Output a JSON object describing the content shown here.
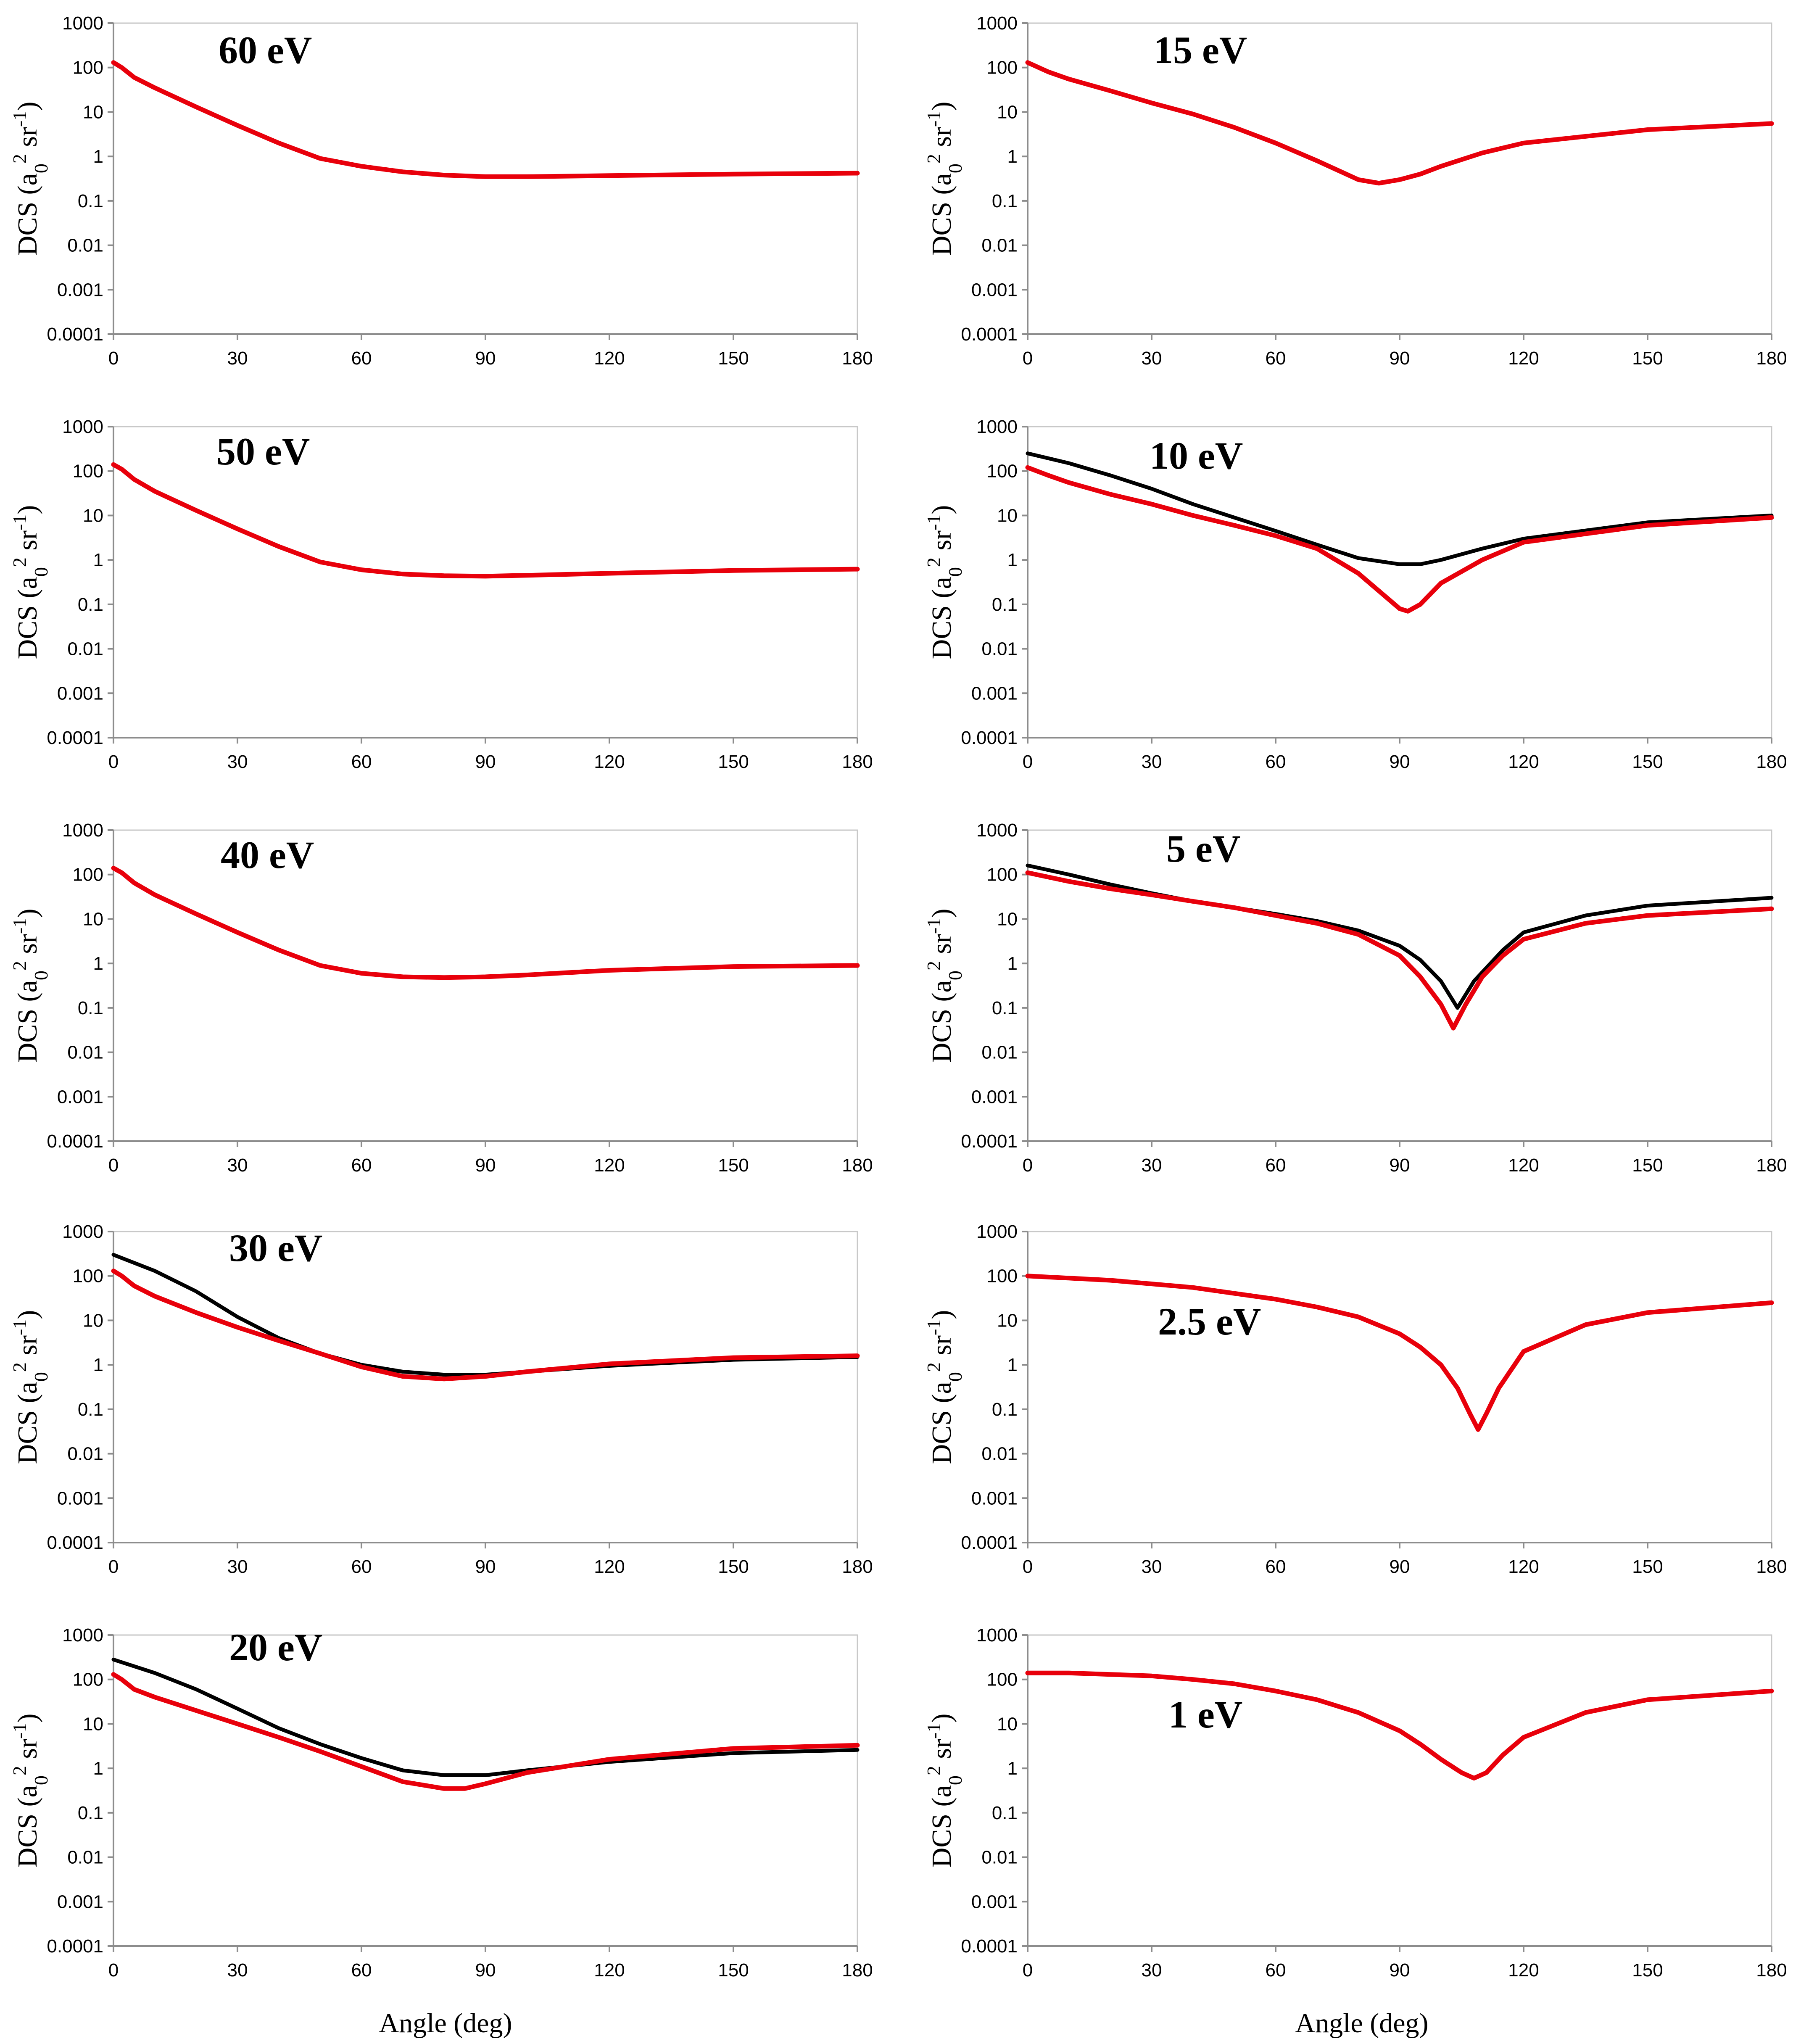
{
  "figure": {
    "x_axis_label": "Angle (deg)"
  },
  "chart_data": [
    {
      "panel": "60 eV",
      "type": "line",
      "xlim": [
        0,
        180
      ],
      "ylim": [
        0.0001,
        1000
      ],
      "yscale": "log",
      "xticks": [
        "0",
        "30",
        "60",
        "90",
        "120",
        "150",
        "180"
      ],
      "yticks": [
        "0.0001",
        "0.001",
        "0.01",
        "0.1",
        "1",
        "10",
        "100",
        "1000"
      ],
      "ylabel_main": "DCS (a",
      "ylabel_sub": "0",
      "ylabel_sup": "2",
      "ylabel_tail": " sr",
      "ylabel_sup2": "-1",
      "ylabel_close": ")",
      "series": [
        {
          "name": "red",
          "color": "#e8000b",
          "x": [
            0,
            2,
            5,
            10,
            20,
            30,
            40,
            50,
            60,
            70,
            80,
            90,
            100,
            120,
            150,
            180
          ],
          "y": [
            130,
            100,
            60,
            35,
            13,
            5,
            2,
            0.9,
            0.6,
            0.45,
            0.38,
            0.35,
            0.35,
            0.37,
            0.4,
            0.42
          ]
        }
      ]
    },
    {
      "panel": "15 eV",
      "type": "line",
      "xlim": [
        0,
        180
      ],
      "ylim": [
        0.0001,
        1000
      ],
      "yscale": "log",
      "xticks": [
        "0",
        "30",
        "60",
        "90",
        "120",
        "150",
        "180"
      ],
      "yticks": [
        "0.0001",
        "0.001",
        "0.01",
        "0.1",
        "1",
        "10",
        "100",
        "1000"
      ],
      "ylabel_main": "DCS (a",
      "ylabel_sub": "0",
      "ylabel_sup": "2",
      "ylabel_tail": " sr",
      "ylabel_sup2": "-1",
      "ylabel_close": ")",
      "series": [
        {
          "name": "red",
          "color": "#e8000b",
          "x": [
            0,
            5,
            10,
            20,
            30,
            40,
            50,
            60,
            70,
            80,
            85,
            90,
            95,
            100,
            110,
            120,
            150,
            180
          ],
          "y": [
            130,
            80,
            55,
            30,
            16,
            9,
            4.5,
            2,
            0.8,
            0.3,
            0.25,
            0.3,
            0.4,
            0.6,
            1.2,
            2,
            4,
            5.5
          ]
        }
      ]
    },
    {
      "panel": "50 eV",
      "type": "line",
      "xlim": [
        0,
        180
      ],
      "ylim": [
        0.0001,
        1000
      ],
      "yscale": "log",
      "xticks": [
        "0",
        "30",
        "60",
        "90",
        "120",
        "150",
        "180"
      ],
      "yticks": [
        "0.0001",
        "0.001",
        "0.01",
        "0.1",
        "1",
        "10",
        "100",
        "1000"
      ],
      "ylabel_main": "DCS (a",
      "ylabel_sub": "0",
      "ylabel_sup": "2",
      "ylabel_tail": " sr",
      "ylabel_sup2": "-1",
      "ylabel_close": ")",
      "series": [
        {
          "name": "red",
          "color": "#e8000b",
          "x": [
            0,
            2,
            5,
            10,
            20,
            30,
            40,
            50,
            60,
            70,
            80,
            90,
            100,
            120,
            150,
            180
          ],
          "y": [
            140,
            110,
            65,
            35,
            13,
            5,
            2,
            0.9,
            0.6,
            0.48,
            0.44,
            0.43,
            0.45,
            0.5,
            0.58,
            0.62
          ]
        }
      ]
    },
    {
      "panel": "10 eV",
      "type": "line",
      "xlim": [
        0,
        180
      ],
      "ylim": [
        0.0001,
        1000
      ],
      "yscale": "log",
      "xticks": [
        "0",
        "30",
        "60",
        "90",
        "120",
        "150",
        "180"
      ],
      "yticks": [
        "0.0001",
        "0.001",
        "0.01",
        "0.1",
        "1",
        "10",
        "100",
        "1000"
      ],
      "ylabel_main": "DCS (a",
      "ylabel_sub": "0",
      "ylabel_sup": "2",
      "ylabel_tail": " sr",
      "ylabel_sup2": "-1",
      "ylabel_close": ")",
      "series": [
        {
          "name": "black",
          "color": "#000000",
          "x": [
            0,
            10,
            20,
            30,
            40,
            50,
            60,
            70,
            80,
            90,
            95,
            100,
            110,
            120,
            150,
            180
          ],
          "y": [
            250,
            150,
            80,
            40,
            18,
            9,
            4.5,
            2.2,
            1.1,
            0.8,
            0.8,
            1,
            1.8,
            3,
            7,
            10
          ]
        },
        {
          "name": "red",
          "color": "#e8000b",
          "x": [
            0,
            5,
            10,
            20,
            30,
            40,
            50,
            60,
            70,
            80,
            85,
            90,
            92,
            95,
            100,
            110,
            120,
            150,
            180
          ],
          "y": [
            120,
            80,
            55,
            30,
            18,
            10,
            6,
            3.5,
            1.8,
            0.5,
            0.2,
            0.08,
            0.07,
            0.1,
            0.3,
            1,
            2.5,
            6,
            9
          ]
        }
      ]
    },
    {
      "panel": "40 eV",
      "type": "line",
      "xlim": [
        0,
        180
      ],
      "ylim": [
        0.0001,
        1000
      ],
      "yscale": "log",
      "xticks": [
        "0",
        "30",
        "60",
        "90",
        "120",
        "150",
        "180"
      ],
      "yticks": [
        "0.0001",
        "0.001",
        "0.01",
        "0.1",
        "1",
        "10",
        "100",
        "1000"
      ],
      "ylabel_main": "DCS (a",
      "ylabel_sub": "0",
      "ylabel_sup": "2",
      "ylabel_tail": " sr",
      "ylabel_sup2": "-1",
      "ylabel_close": ")",
      "series": [
        {
          "name": "red",
          "color": "#e8000b",
          "x": [
            0,
            2,
            5,
            10,
            20,
            30,
            40,
            50,
            60,
            70,
            80,
            90,
            100,
            120,
            150,
            180
          ],
          "y": [
            140,
            110,
            65,
            35,
            13,
            5,
            2,
            0.9,
            0.6,
            0.5,
            0.48,
            0.5,
            0.55,
            0.7,
            0.85,
            0.9
          ]
        }
      ]
    },
    {
      "panel": "5 eV",
      "type": "line",
      "xlim": [
        0,
        180
      ],
      "ylim": [
        0.0001,
        1000
      ],
      "yscale": "log",
      "xticks": [
        "0",
        "30",
        "60",
        "90",
        "120",
        "150",
        "180"
      ],
      "yticks": [
        "0.0001",
        "0.001",
        "0.01",
        "0.1",
        "1",
        "10",
        "100",
        "1000"
      ],
      "ylabel_main": "DCS (a",
      "ylabel_sub": "0",
      "ylabel_sup": "2",
      "ylabel_tail": " sr",
      "ylabel_sup2": "-1",
      "ylabel_close": ")",
      "series": [
        {
          "name": "black",
          "color": "#000000",
          "x": [
            0,
            10,
            20,
            30,
            40,
            50,
            60,
            70,
            80,
            90,
            95,
            100,
            104,
            108,
            115,
            120,
            135,
            150,
            180
          ],
          "y": [
            160,
            100,
            60,
            38,
            25,
            18,
            13,
            9,
            5.5,
            2.5,
            1.2,
            0.4,
            0.1,
            0.4,
            2,
            5,
            12,
            20,
            30
          ]
        },
        {
          "name": "red",
          "color": "#e8000b",
          "x": [
            0,
            10,
            20,
            30,
            40,
            50,
            60,
            70,
            80,
            90,
            95,
            100,
            103,
            106,
            110,
            115,
            120,
            135,
            150,
            180
          ],
          "y": [
            110,
            70,
            48,
            35,
            25,
            18,
            12,
            8,
            4.5,
            1.5,
            0.5,
            0.12,
            0.035,
            0.12,
            0.5,
            1.5,
            3.5,
            8,
            12,
            17
          ]
        }
      ]
    },
    {
      "panel": "30 eV",
      "type": "line",
      "xlim": [
        0,
        180
      ],
      "ylim": [
        0.0001,
        1000
      ],
      "yscale": "log",
      "xticks": [
        "0",
        "30",
        "60",
        "90",
        "120",
        "150",
        "180"
      ],
      "yticks": [
        "0.0001",
        "0.001",
        "0.01",
        "0.1",
        "1",
        "10",
        "100",
        "1000"
      ],
      "ylabel_main": "DCS (a",
      "ylabel_sub": "0",
      "ylabel_sup": "2",
      "ylabel_tail": " sr",
      "ylabel_sup2": "-1",
      "ylabel_close": ")",
      "series": [
        {
          "name": "black",
          "color": "#000000",
          "x": [
            0,
            10,
            20,
            30,
            40,
            50,
            60,
            70,
            80,
            90,
            100,
            120,
            150,
            180
          ],
          "y": [
            300,
            130,
            45,
            12,
            4,
            1.8,
            1,
            0.7,
            0.6,
            0.6,
            0.7,
            0.95,
            1.3,
            1.5
          ]
        },
        {
          "name": "red",
          "color": "#e8000b",
          "x": [
            0,
            2,
            5,
            10,
            20,
            30,
            40,
            50,
            60,
            70,
            80,
            90,
            100,
            120,
            150,
            180
          ],
          "y": [
            130,
            100,
            60,
            35,
            15,
            7,
            3.5,
            1.8,
            0.9,
            0.55,
            0.48,
            0.55,
            0.7,
            1.05,
            1.45,
            1.6
          ]
        }
      ]
    },
    {
      "panel": "2.5 eV",
      "type": "line",
      "xlim": [
        0,
        180
      ],
      "ylim": [
        0.0001,
        1000
      ],
      "yscale": "log",
      "xticks": [
        "0",
        "30",
        "60",
        "90",
        "120",
        "150",
        "180"
      ],
      "yticks": [
        "0.0001",
        "0.001",
        "0.01",
        "0.1",
        "1",
        "10",
        "100",
        "1000"
      ],
      "ylabel_main": "DCS (a",
      "ylabel_sub": "0",
      "ylabel_sup": "2",
      "ylabel_tail": " sr",
      "ylabel_sup2": "-1",
      "ylabel_close": ")",
      "series": [
        {
          "name": "red",
          "color": "#e8000b",
          "x": [
            0,
            20,
            40,
            60,
            70,
            80,
            90,
            95,
            100,
            104,
            107,
            109,
            111,
            114,
            120,
            135,
            150,
            180
          ],
          "y": [
            100,
            80,
            55,
            30,
            20,
            12,
            5,
            2.5,
            1,
            0.3,
            0.08,
            0.035,
            0.08,
            0.3,
            2,
            8,
            15,
            25
          ]
        }
      ]
    },
    {
      "panel": "20 eV",
      "type": "line",
      "xlim": [
        0,
        180
      ],
      "ylim": [
        0.0001,
        1000
      ],
      "yscale": "log",
      "xticks": [
        "0",
        "30",
        "60",
        "90",
        "120",
        "150",
        "180"
      ],
      "yticks": [
        "0.0001",
        "0.001",
        "0.01",
        "0.1",
        "1",
        "10",
        "100",
        "1000"
      ],
      "ylabel_main": "DCS (a",
      "ylabel_sub": "0",
      "ylabel_sup": "2",
      "ylabel_tail": " sr",
      "ylabel_sup2": "-1",
      "ylabel_close": ")",
      "series": [
        {
          "name": "black",
          "color": "#000000",
          "x": [
            0,
            10,
            20,
            30,
            40,
            50,
            60,
            70,
            80,
            90,
            100,
            120,
            150,
            180
          ],
          "y": [
            280,
            140,
            60,
            22,
            8,
            3.5,
            1.7,
            0.9,
            0.7,
            0.7,
            0.9,
            1.4,
            2.2,
            2.6
          ]
        },
        {
          "name": "red",
          "color": "#e8000b",
          "x": [
            0,
            2,
            5,
            10,
            20,
            30,
            40,
            50,
            60,
            70,
            80,
            85,
            90,
            100,
            120,
            150,
            180
          ],
          "y": [
            130,
            100,
            60,
            40,
            20,
            10,
            5,
            2.4,
            1.1,
            0.5,
            0.35,
            0.35,
            0.45,
            0.8,
            1.6,
            2.8,
            3.3
          ]
        }
      ]
    },
    {
      "panel": "1 eV",
      "type": "line",
      "xlim": [
        0,
        180
      ],
      "ylim": [
        0.0001,
        1000
      ],
      "yscale": "log",
      "xticks": [
        "0",
        "30",
        "60",
        "90",
        "120",
        "150",
        "180"
      ],
      "yticks": [
        "0.0001",
        "0.001",
        "0.01",
        "0.1",
        "1",
        "10",
        "100",
        "1000"
      ],
      "ylabel_main": "DCS (a",
      "ylabel_sub": "0",
      "ylabel_sup": "2",
      "ylabel_tail": " sr",
      "ylabel_sup2": "-1",
      "ylabel_close": ")",
      "series": [
        {
          "name": "red",
          "color": "#e8000b",
          "x": [
            0,
            10,
            20,
            30,
            40,
            50,
            60,
            70,
            80,
            90,
            95,
            100,
            105,
            108,
            111,
            115,
            120,
            135,
            150,
            180
          ],
          "y": [
            140,
            140,
            130,
            120,
            100,
            80,
            55,
            35,
            18,
            7,
            3.5,
            1.6,
            0.8,
            0.6,
            0.8,
            2,
            5,
            18,
            35,
            55
          ]
        }
      ]
    }
  ]
}
